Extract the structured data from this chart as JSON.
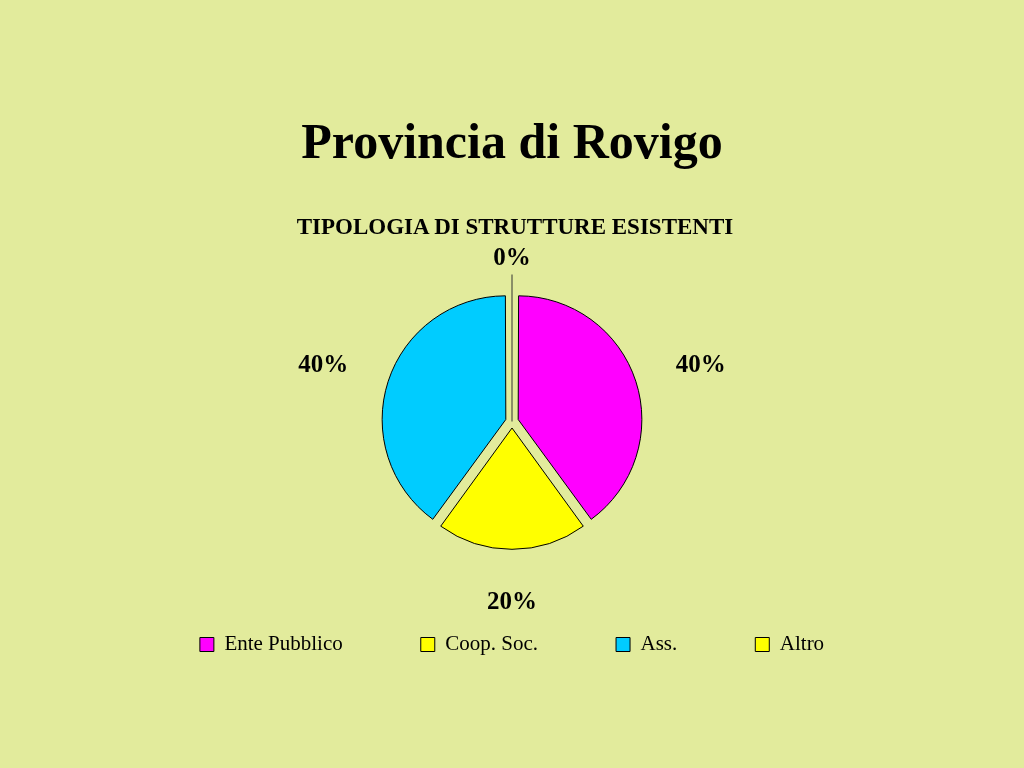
{
  "chart_data": {
    "type": "pie",
    "title": "Provincia di Rovigo",
    "subtitle": "TIPOLOGIA DI STRUTTURE ESISTENTI",
    "categories": [
      "Ente Pubblico",
      "Coop. Soc.",
      "Ass.",
      "Altro"
    ],
    "values": [
      40,
      20,
      40,
      0
    ],
    "value_labels": [
      "40%",
      "20%",
      "40%",
      "0%"
    ],
    "colors": [
      "#ff00ff",
      "#ffff00",
      "#00ccff",
      "#ffff00"
    ],
    "legend": "bottom"
  }
}
